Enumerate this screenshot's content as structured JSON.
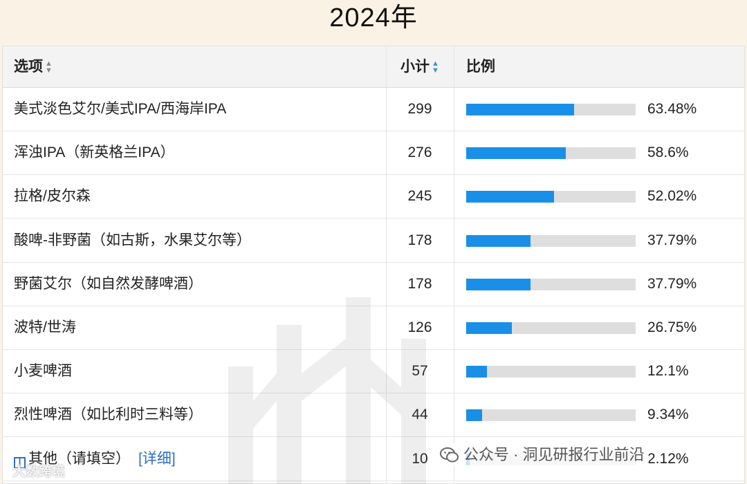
{
  "page_title": "2024年",
  "table": {
    "headers": {
      "option": "选项",
      "count": "小计",
      "ratio": "比例"
    },
    "rows": [
      {
        "label": "美式淡色艾尔/美式IPA/西海岸IPA",
        "count": "299",
        "percent_text": "63.48%",
        "percent": 63.48
      },
      {
        "label": "浑浊IPA（新英格兰IPA）",
        "count": "276",
        "percent_text": "58.6%",
        "percent": 58.6
      },
      {
        "label": "拉格/皮尔森",
        "count": "245",
        "percent_text": "52.02%",
        "percent": 52.02
      },
      {
        "label": "酸啤-非野菌（如古斯，水果艾尔等）",
        "count": "178",
        "percent_text": "37.79%",
        "percent": 37.79
      },
      {
        "label": "野菌艾尔（如自然发酵啤酒）",
        "count": "178",
        "percent_text": "37.79%",
        "percent": 37.79
      },
      {
        "label": "波特/世涛",
        "count": "126",
        "percent_text": "26.75%",
        "percent": 26.75
      },
      {
        "label": "小麦啤酒",
        "count": "57",
        "percent_text": "12.1%",
        "percent": 12.1
      },
      {
        "label": "烈性啤酒（如比利时三料等）",
        "count": "44",
        "percent_text": "9.34%",
        "percent": 9.34
      }
    ],
    "other_row": {
      "label": "其他（请填空）",
      "detail_link": "[详细]",
      "count": "10",
      "percent_text": "2.12%",
      "percent": 2.12
    }
  },
  "watermark_credit": "公众号 · 洞见研报行业前沿",
  "watermark_brand": "大数跨境",
  "colors": {
    "bar_fill": "#1a8fe8",
    "bar_track": "#dedede",
    "link": "#2a6fc9",
    "background": "#fbf2e6"
  }
}
